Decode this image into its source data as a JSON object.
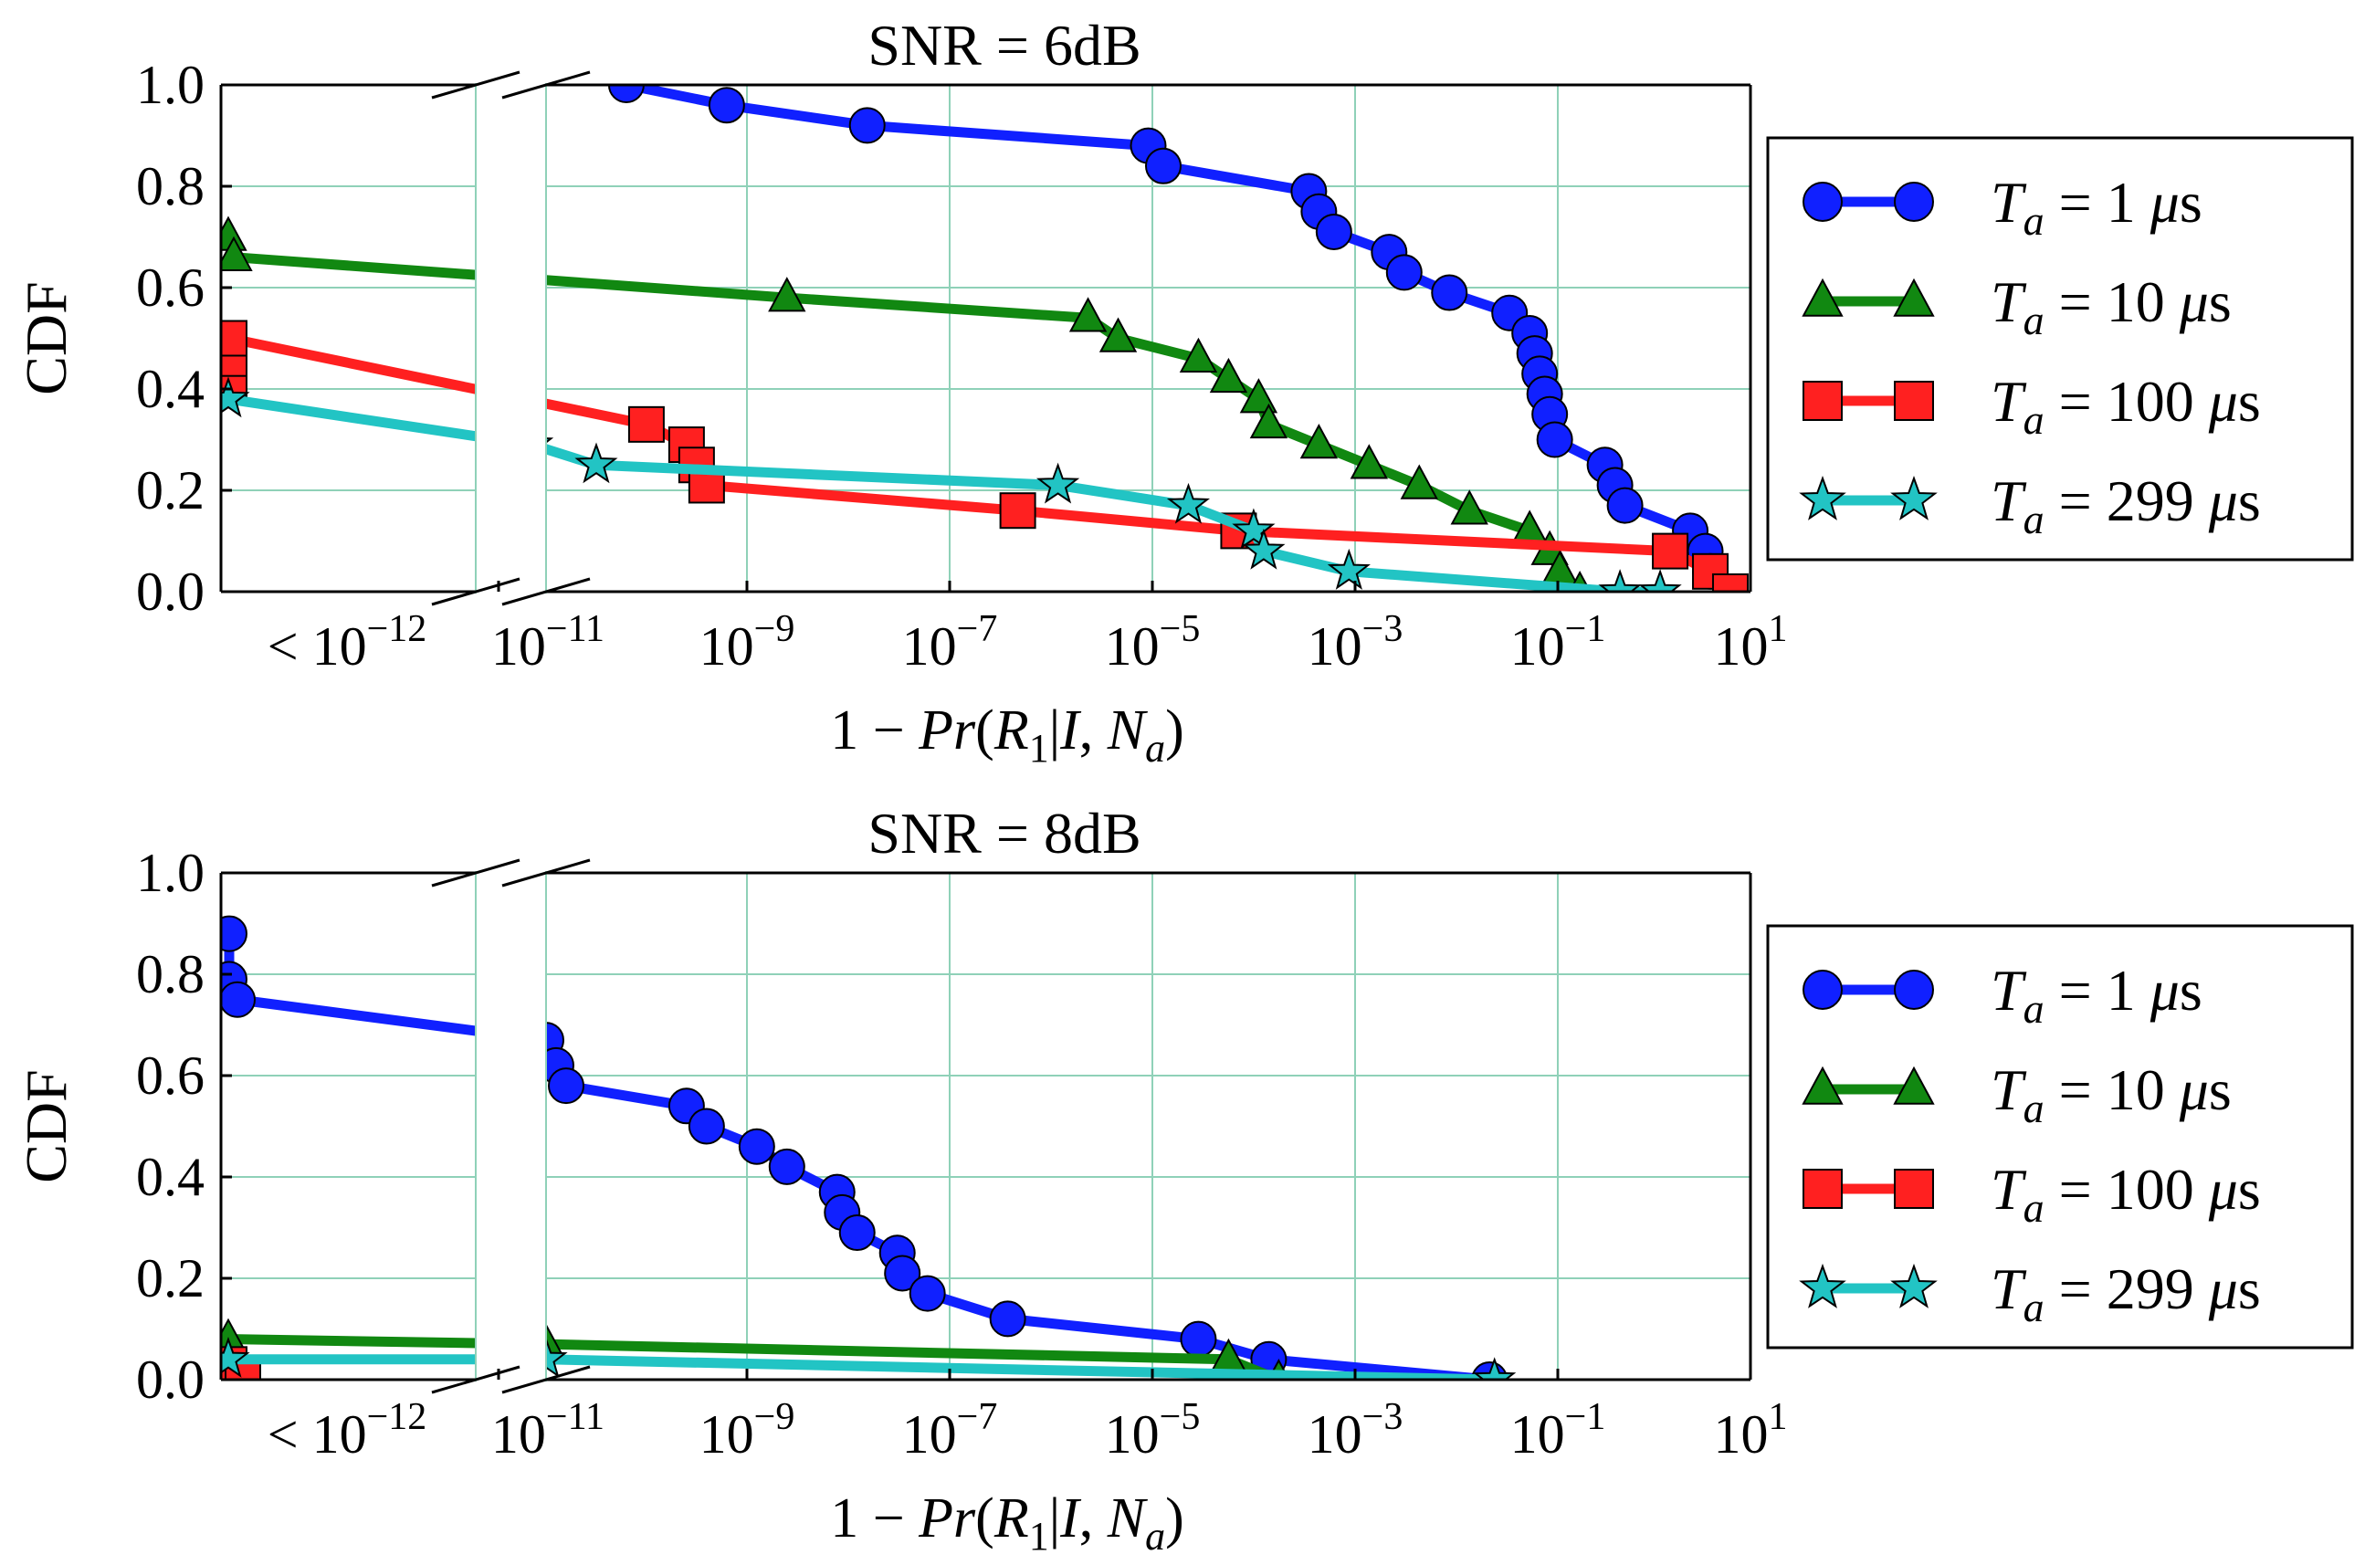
{
  "chart_data": [
    {
      "type": "line",
      "title": "SNR = 6dB",
      "xlabel": "1 − Pr(R₁|I,Nₐ)",
      "ylabel": "CDF",
      "xscale": "log",
      "xticks": [
        "< 10⁻¹²",
        "10⁻¹¹",
        "10⁻⁹",
        "10⁻⁷",
        "10⁻⁵",
        "10⁻³",
        "10⁻¹",
        "10¹"
      ],
      "yticks": [
        "0.0",
        "0.2",
        "0.4",
        "0.6",
        "0.8",
        "1.0"
      ],
      "ylim": [
        0,
        1
      ],
      "grid": true,
      "legend_position": "right",
      "series": [
        {
          "name": "T_a = 1 μs",
          "color": "#1020ff",
          "marker": "circle",
          "points": [
            [
              -10.2,
              1.0
            ],
            [
              -9.2,
              0.96
            ],
            [
              -7.8,
              0.92
            ],
            [
              -5.0,
              0.88
            ],
            [
              -4.85,
              0.84
            ],
            [
              -3.4,
              0.79
            ],
            [
              -3.3,
              0.75
            ],
            [
              -3.15,
              0.71
            ],
            [
              -2.6,
              0.67
            ],
            [
              -2.45,
              0.63
            ],
            [
              -2.0,
              0.59
            ],
            [
              -1.4,
              0.55
            ],
            [
              -1.2,
              0.51
            ],
            [
              -1.15,
              0.47
            ],
            [
              -1.1,
              0.43
            ],
            [
              -1.05,
              0.39
            ],
            [
              -1.0,
              0.35
            ],
            [
              -0.95,
              0.3
            ],
            [
              -0.45,
              0.25
            ],
            [
              -0.35,
              0.21
            ],
            [
              -0.25,
              0.17
            ],
            [
              0.4,
              0.12
            ],
            [
              0.55,
              0.08
            ],
            [
              0.6,
              0.04
            ]
          ]
        },
        {
          "name": "T_a = 10 μs",
          "color": "#118811",
          "marker": "triangle",
          "points": [
            [
              -13.1,
              0.7
            ],
            [
              -12.8,
              0.66
            ],
            [
              -8.6,
              0.58
            ],
            [
              -5.6,
              0.54
            ],
            [
              -5.3,
              0.5
            ],
            [
              -4.5,
              0.46
            ],
            [
              -4.2,
              0.42
            ],
            [
              -3.9,
              0.38
            ],
            [
              -3.8,
              0.33
            ],
            [
              -3.3,
              0.29
            ],
            [
              -2.8,
              0.25
            ],
            [
              -2.3,
              0.21
            ],
            [
              -1.8,
              0.16
            ],
            [
              -1.2,
              0.12
            ],
            [
              -1.0,
              0.08
            ],
            [
              -0.9,
              0.04
            ],
            [
              -0.7,
              0.0
            ]
          ]
        },
        {
          "name": "T_a = 100 μs",
          "color": "#ff2020",
          "marker": "square",
          "points": [
            [
              -13.05,
              0.42
            ],
            [
              -13.05,
              0.46
            ],
            [
              -13.05,
              0.5
            ],
            [
              -10.0,
              0.33
            ],
            [
              -9.6,
              0.29
            ],
            [
              -9.5,
              0.25
            ],
            [
              -9.4,
              0.21
            ],
            [
              -6.3,
              0.16
            ],
            [
              -4.1,
              0.12
            ],
            [
              0.2,
              0.08
            ],
            [
              0.6,
              0.04
            ],
            [
              0.8,
              0.0
            ]
          ]
        },
        {
          "name": "T_a = 299 μs",
          "color": "#22c4c4",
          "marker": "star",
          "points": [
            [
              -13.1,
              0.38
            ],
            [
              -11.2,
              0.29
            ],
            [
              -10.5,
              0.25
            ],
            [
              -5.9,
              0.21
            ],
            [
              -4.6,
              0.17
            ],
            [
              -3.95,
              0.12
            ],
            [
              -3.85,
              0.08
            ],
            [
              -3.0,
              0.04
            ],
            [
              -0.3,
              0.0
            ],
            [
              0.1,
              0.0
            ]
          ]
        }
      ]
    },
    {
      "type": "line",
      "title": "SNR = 8dB",
      "xlabel": "1 − Pr(R₁|I,Nₐ)",
      "ylabel": "CDF",
      "xscale": "log",
      "xticks": [
        "< 10⁻¹²",
        "10⁻¹¹",
        "10⁻⁹",
        "10⁻⁷",
        "10⁻⁵",
        "10⁻³",
        "10⁻¹",
        "10¹"
      ],
      "yticks": [
        "0.0",
        "0.2",
        "0.4",
        "0.6",
        "0.8",
        "1.0"
      ],
      "ylim": [
        0,
        1
      ],
      "grid": true,
      "legend_position": "right",
      "series": [
        {
          "name": "T_a = 1 μs",
          "color": "#1020ff",
          "marker": "circle",
          "points": [
            [
              -13.05,
              0.88
            ],
            [
              -13.05,
              0.79
            ],
            [
              -12.6,
              0.75
            ],
            [
              -11.0,
              0.67
            ],
            [
              -10.9,
              0.62
            ],
            [
              -10.8,
              0.58
            ],
            [
              -9.6,
              0.54
            ],
            [
              -9.4,
              0.5
            ],
            [
              -8.9,
              0.46
            ],
            [
              -8.6,
              0.42
            ],
            [
              -8.1,
              0.37
            ],
            [
              -8.05,
              0.33
            ],
            [
              -7.9,
              0.29
            ],
            [
              -7.5,
              0.25
            ],
            [
              -7.45,
              0.21
            ],
            [
              -7.2,
              0.17
            ],
            [
              -6.4,
              0.12
            ],
            [
              -4.5,
              0.08
            ],
            [
              -3.8,
              0.04
            ],
            [
              -1.6,
              0.0
            ]
          ]
        },
        {
          "name": "T_a = 10 μs",
          "color": "#118811",
          "marker": "triangle",
          "points": [
            [
              -13.1,
              0.08
            ],
            [
              -11.0,
              0.07
            ],
            [
              -4.2,
              0.04
            ],
            [
              -3.7,
              0.0
            ]
          ]
        },
        {
          "name": "T_a = 100 μs",
          "color": "#ff2020",
          "marker": "square",
          "points": [
            [
              -13.05,
              0.03
            ],
            [
              -12.3,
              0.0
            ]
          ]
        },
        {
          "name": "T_a = 299 μs",
          "color": "#22c4c4",
          "marker": "star",
          "points": [
            [
              -13.1,
              0.04
            ],
            [
              -11.0,
              0.04
            ],
            [
              -1.55,
              0.0
            ]
          ]
        }
      ]
    }
  ]
}
